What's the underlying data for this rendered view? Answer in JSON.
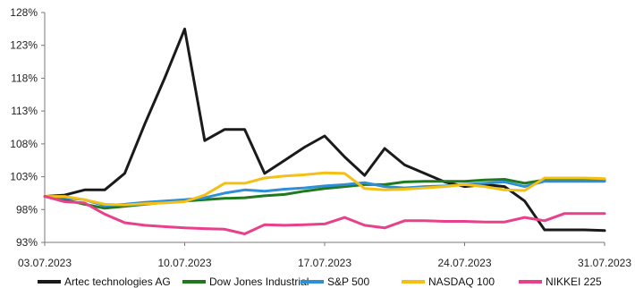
{
  "chart_data": {
    "type": "line",
    "title": "",
    "xlabel": "",
    "ylabel": "",
    "x_tick_labels": [
      "03.07.2023",
      "10.07.2023",
      "17.07.2023",
      "24.07.2023",
      "31.07.2023"
    ],
    "x_tick_days": [
      3,
      10,
      17,
      24,
      31
    ],
    "x_range_days": [
      3,
      31
    ],
    "ylim": [
      93,
      128
    ],
    "y_ticks": [
      93,
      98,
      103,
      108,
      113,
      118,
      123,
      128
    ],
    "y_tick_labels": [
      "93%",
      "98%",
      "103%",
      "108%",
      "113%",
      "118%",
      "123%",
      "128%"
    ],
    "grid": false,
    "legend_placement": "bottom",
    "series": [
      {
        "name": "Artec technologies AG",
        "color": "#1a1a1a",
        "points": [
          [
            3,
            100
          ],
          [
            4,
            100.2
          ],
          [
            5,
            101
          ],
          [
            6,
            101
          ],
          [
            7,
            103.5
          ],
          [
            8,
            111
          ],
          [
            9,
            118
          ],
          [
            10,
            125.5
          ],
          [
            11,
            108.5
          ],
          [
            12,
            110.2
          ],
          [
            13,
            110.2
          ],
          [
            14,
            103.5
          ],
          [
            15,
            105.5
          ],
          [
            16,
            107.5
          ],
          [
            17,
            109.2
          ],
          [
            18,
            106
          ],
          [
            19,
            103.2
          ],
          [
            20,
            107.3
          ],
          [
            21,
            104.8
          ],
          [
            22,
            103.5
          ],
          [
            23,
            102.2
          ],
          [
            24,
            101.5
          ],
          [
            25,
            101.8
          ],
          [
            26,
            101.5
          ],
          [
            27,
            99.3
          ],
          [
            28,
            94.9
          ],
          [
            29,
            94.9
          ],
          [
            30,
            94.9
          ],
          [
            31,
            94.8
          ]
        ]
      },
      {
        "name": "Dow Jones Industrial",
        "color": "#1f7a1f",
        "points": [
          [
            3,
            100
          ],
          [
            4,
            99.5
          ],
          [
            5,
            98.8
          ],
          [
            6,
            98.2
          ],
          [
            7,
            98.5
          ],
          [
            8,
            98.8
          ],
          [
            9,
            99.1
          ],
          [
            10,
            99.3
          ],
          [
            11,
            99.5
          ],
          [
            12,
            99.7
          ],
          [
            13,
            99.8
          ],
          [
            14,
            100.1
          ],
          [
            15,
            100.3
          ],
          [
            16,
            100.8
          ],
          [
            17,
            101.2
          ],
          [
            18,
            101.5
          ],
          [
            19,
            101.8
          ],
          [
            20,
            101.8
          ],
          [
            21,
            102.2
          ],
          [
            22,
            102.3
          ],
          [
            23,
            102.3
          ],
          [
            24,
            102.3
          ],
          [
            25,
            102.5
          ],
          [
            26,
            102.6
          ],
          [
            27,
            102
          ],
          [
            28,
            102.5
          ],
          [
            29,
            102.5
          ],
          [
            30,
            102.5
          ],
          [
            31,
            102.5
          ]
        ]
      },
      {
        "name": "S&P 500",
        "color": "#2e8fd6",
        "points": [
          [
            3,
            100
          ],
          [
            4,
            99.8
          ],
          [
            5,
            99.5
          ],
          [
            6,
            98.6
          ],
          [
            7,
            98.8
          ],
          [
            8,
            99.1
          ],
          [
            9,
            99.3
          ],
          [
            10,
            99.5
          ],
          [
            11,
            99.8
          ],
          [
            12,
            100.5
          ],
          [
            13,
            101
          ],
          [
            14,
            100.8
          ],
          [
            15,
            101.1
          ],
          [
            16,
            101.3
          ],
          [
            17,
            101.6
          ],
          [
            18,
            101.8
          ],
          [
            19,
            102.1
          ],
          [
            20,
            101.5
          ],
          [
            21,
            101.3
          ],
          [
            22,
            101.5
          ],
          [
            23,
            101.6
          ],
          [
            24,
            101.8
          ],
          [
            25,
            102
          ],
          [
            26,
            102.2
          ],
          [
            27,
            101.5
          ],
          [
            28,
            102.3
          ],
          [
            29,
            102.3
          ],
          [
            30,
            102.3
          ],
          [
            31,
            102.3
          ]
        ]
      },
      {
        "name": "NASDAQ 100",
        "color": "#f5c016",
        "points": [
          [
            3,
            100
          ],
          [
            4,
            100
          ],
          [
            5,
            99.5
          ],
          [
            6,
            98.8
          ],
          [
            7,
            98.7
          ],
          [
            8,
            98.9
          ],
          [
            9,
            99
          ],
          [
            10,
            99.2
          ],
          [
            11,
            100.2
          ],
          [
            12,
            102
          ],
          [
            13,
            102
          ],
          [
            14,
            102.8
          ],
          [
            15,
            103.1
          ],
          [
            16,
            103.3
          ],
          [
            17,
            103.6
          ],
          [
            18,
            103.5
          ],
          [
            19,
            101.2
          ],
          [
            20,
            101
          ],
          [
            21,
            101.1
          ],
          [
            22,
            101.3
          ],
          [
            23,
            101.5
          ],
          [
            24,
            101.8
          ],
          [
            25,
            101.5
          ],
          [
            26,
            101
          ],
          [
            27,
            100.9
          ],
          [
            28,
            102.8
          ],
          [
            29,
            102.8
          ],
          [
            30,
            102.8
          ],
          [
            31,
            102.7
          ]
        ]
      },
      {
        "name": "NIKKEI 225",
        "color": "#e8408a",
        "points": [
          [
            3,
            100
          ],
          [
            4,
            99.2
          ],
          [
            5,
            99
          ],
          [
            6,
            97.3
          ],
          [
            7,
            96
          ],
          [
            8,
            95.6
          ],
          [
            9,
            95.4
          ],
          [
            10,
            95.2
          ],
          [
            11,
            95.1
          ],
          [
            12,
            95
          ],
          [
            13,
            94.3
          ],
          [
            14,
            95.7
          ],
          [
            15,
            95.6
          ],
          [
            16,
            95.7
          ],
          [
            17,
            95.8
          ],
          [
            18,
            96.8
          ],
          [
            19,
            95.6
          ],
          [
            20,
            95.2
          ],
          [
            21,
            96.3
          ],
          [
            22,
            96.3
          ],
          [
            23,
            96.2
          ],
          [
            24,
            96.2
          ],
          [
            25,
            96.1
          ],
          [
            26,
            96.1
          ],
          [
            27,
            96.8
          ],
          [
            28,
            96.3
          ],
          [
            29,
            97.4
          ],
          [
            30,
            97.4
          ],
          [
            31,
            97.4
          ]
        ]
      }
    ]
  }
}
